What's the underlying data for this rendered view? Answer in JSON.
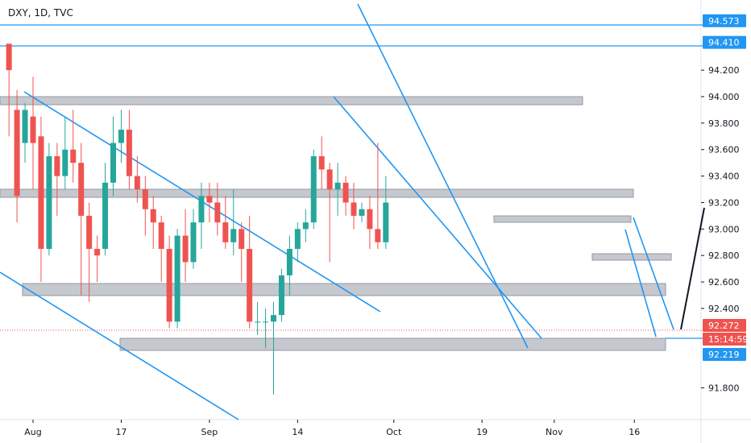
{
  "chart_data": {
    "type": "candlestick",
    "title": "DXY, 1D, TVC",
    "ylim": [
      91.56,
      94.73
    ],
    "grid": false,
    "y_ticks": [
      "94.200",
      "94.000",
      "93.800",
      "93.600",
      "93.400",
      "93.200",
      "93.000",
      "92.800",
      "92.600",
      "92.400",
      "91.800"
    ],
    "x_ticks": [
      {
        "label": "Aug",
        "day": 0
      },
      {
        "label": "17",
        "day": 11
      },
      {
        "label": "Sep",
        "day": 22
      },
      {
        "label": "14",
        "day": 33
      },
      {
        "label": "Oct",
        "day": 45
      },
      {
        "label": "19",
        "day": 56
      },
      {
        "label": "Nov",
        "day": 65
      },
      {
        "label": "16",
        "day": 75
      }
    ],
    "price_badges": [
      {
        "value": "94.573",
        "y": 94.573,
        "color": "#2196f3"
      },
      {
        "value": "94.410",
        "y": 94.41,
        "color": "#2196f3"
      },
      {
        "value": "92.272",
        "y": 92.272,
        "color": "#ef5350"
      },
      {
        "value": "15:14:59",
        "y": 92.245,
        "color": "#ef5350"
      },
      {
        "value": "92.219",
        "y": 92.219,
        "color": "#2196f3"
      }
    ],
    "colors": {
      "up": "#26a69a",
      "down": "#ef5350",
      "line": "#2196f3",
      "zone": "#b2b5be",
      "axis": "#131722"
    },
    "candles": [
      [
        -3,
        94.4,
        94.2,
        94.34,
        93.7
      ],
      [
        -2,
        93.9,
        93.25,
        94.05,
        93.05
      ],
      [
        -1,
        93.65,
        93.9,
        93.95,
        93.5
      ],
      [
        0,
        93.85,
        93.65,
        94.15,
        93.3
      ],
      [
        1,
        93.7,
        92.85,
        93.85,
        92.6
      ],
      [
        2,
        92.85,
        93.55,
        93.65,
        92.8
      ],
      [
        3,
        93.55,
        93.4,
        93.65,
        93.1
      ],
      [
        4,
        93.4,
        93.6,
        93.85,
        93.3
      ],
      [
        5,
        93.6,
        93.5,
        93.9,
        93.35
      ],
      [
        6,
        93.5,
        93.1,
        93.65,
        92.5
      ],
      [
        7,
        93.1,
        92.85,
        93.2,
        92.45
      ],
      [
        8,
        92.85,
        92.8,
        92.95,
        92.6
      ],
      [
        9,
        92.85,
        93.35,
        93.5,
        92.8
      ],
      [
        10,
        93.35,
        93.65,
        93.85,
        93.25
      ],
      [
        11,
        93.65,
        93.75,
        93.9,
        93.5
      ],
      [
        12,
        93.75,
        93.4,
        93.9,
        93.3
      ],
      [
        13,
        93.4,
        93.3,
        93.55,
        93.2
      ],
      [
        14,
        93.3,
        93.15,
        93.4,
        92.95
      ],
      [
        15,
        93.15,
        93.05,
        93.25,
        92.85
      ],
      [
        16,
        93.05,
        92.85,
        93.1,
        92.6
      ],
      [
        17,
        92.85,
        92.3,
        92.95,
        92.25
      ],
      [
        18,
        92.3,
        92.95,
        93.0,
        92.25
      ],
      [
        19,
        92.95,
        92.75,
        93.15,
        92.6
      ],
      [
        20,
        92.75,
        93.05,
        93.15,
        92.7
      ],
      [
        21,
        93.05,
        93.25,
        93.35,
        92.85
      ],
      [
        22,
        93.25,
        93.2,
        93.35,
        93.05
      ],
      [
        23,
        93.2,
        93.05,
        93.35,
        92.95
      ],
      [
        24,
        93.05,
        92.9,
        93.25,
        92.85
      ],
      [
        25,
        92.9,
        93.0,
        93.3,
        92.8
      ],
      [
        26,
        93.0,
        92.85,
        93.05,
        92.6
      ],
      [
        27,
        92.85,
        92.3,
        93.1,
        92.25
      ],
      [
        28,
        92.3,
        92.3,
        92.45,
        92.2
      ],
      [
        29,
        92.3,
        92.3,
        92.4,
        92.1
      ],
      [
        30,
        92.3,
        92.35,
        92.45,
        91.75
      ],
      [
        31,
        92.35,
        92.65,
        92.7,
        92.3
      ],
      [
        32,
        92.65,
        92.85,
        92.95,
        92.5
      ],
      [
        33,
        92.85,
        93.0,
        93.05,
        92.75
      ],
      [
        34,
        93.0,
        93.05,
        93.15,
        92.9
      ],
      [
        35,
        93.05,
        93.55,
        93.6,
        93.0
      ],
      [
        36,
        93.55,
        93.45,
        93.7,
        93.3
      ],
      [
        37,
        93.45,
        93.3,
        93.5,
        92.75
      ],
      [
        38,
        93.3,
        93.35,
        93.5,
        93.1
      ],
      [
        39,
        93.35,
        93.2,
        93.4,
        93.1
      ],
      [
        40,
        93.2,
        93.1,
        93.35,
        93.0
      ],
      [
        41,
        93.1,
        93.15,
        93.2,
        93.05
      ],
      [
        42,
        93.15,
        93.0,
        93.25,
        92.85
      ],
      [
        43,
        93.0,
        92.9,
        93.65,
        92.85
      ],
      [
        44,
        92.9,
        93.2,
        93.4,
        92.85
      ]
    ]
  }
}
